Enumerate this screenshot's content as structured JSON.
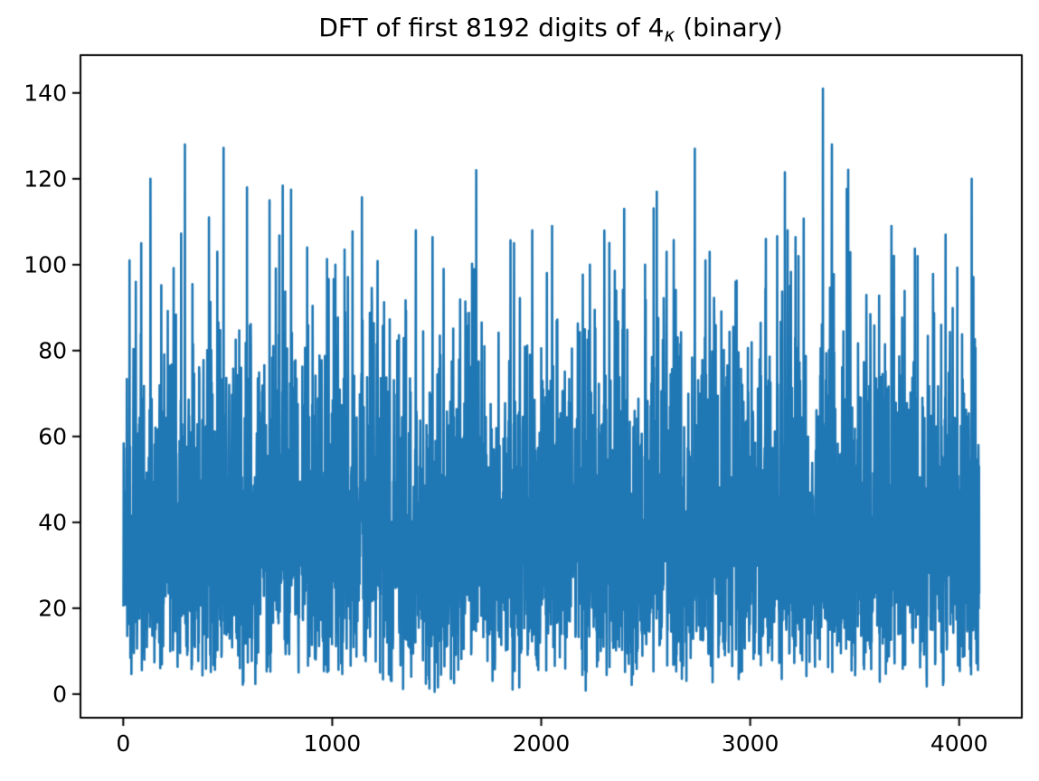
{
  "chart_data": {
    "type": "line",
    "title": "DFT of first 8192 digits of 4κ (binary)",
    "title_parts": {
      "prefix": "DFT of first 8192 digits of 4",
      "subscript": "κ",
      "suffix": " (binary)"
    },
    "xlabel": "",
    "ylabel": "",
    "x_ticks": [
      0,
      1000,
      2000,
      3000,
      4000
    ],
    "y_ticks": [
      0,
      20,
      40,
      60,
      80,
      100,
      120,
      140
    ],
    "xlim": [
      -204.75,
      4299.75
    ],
    "ylim": [
      -5.5,
      148.8
    ],
    "n_points": 4097,
    "grid": false,
    "legend": null,
    "line_color": "#1f77b4",
    "axis_color": "#000000",
    "background_color": "#ffffff",
    "noise_model": {
      "distribution": "rayleigh",
      "sigma": 32,
      "seed": 1337,
      "min_clip": 0.4,
      "max_clip": 128
    },
    "notable_peaks": [
      [
        30,
        101
      ],
      [
        60,
        96
      ],
      [
        86,
        105
      ],
      [
        130,
        120
      ],
      [
        410,
        111
      ],
      [
        450,
        103
      ],
      [
        592,
        118
      ],
      [
        700,
        115
      ],
      [
        803,
        117.5
      ],
      [
        880,
        104
      ],
      [
        1015,
        100
      ],
      [
        1190,
        91
      ],
      [
        1400,
        108
      ],
      [
        1533,
        99
      ],
      [
        1689,
        122
      ],
      [
        1870,
        105
      ],
      [
        1957,
        108
      ],
      [
        2052,
        109
      ],
      [
        2233,
        100
      ],
      [
        2397,
        113
      ],
      [
        2497,
        100
      ],
      [
        2553,
        117
      ],
      [
        2600,
        103
      ],
      [
        2786,
        101
      ],
      [
        2930,
        96
      ],
      [
        3075,
        106
      ],
      [
        3179,
        108
      ],
      [
        3231,
        102
      ],
      [
        3348,
        141
      ],
      [
        3390,
        103
      ],
      [
        3676,
        109
      ],
      [
        3801,
        102
      ],
      [
        3935,
        107
      ],
      [
        4060,
        120
      ]
    ]
  }
}
